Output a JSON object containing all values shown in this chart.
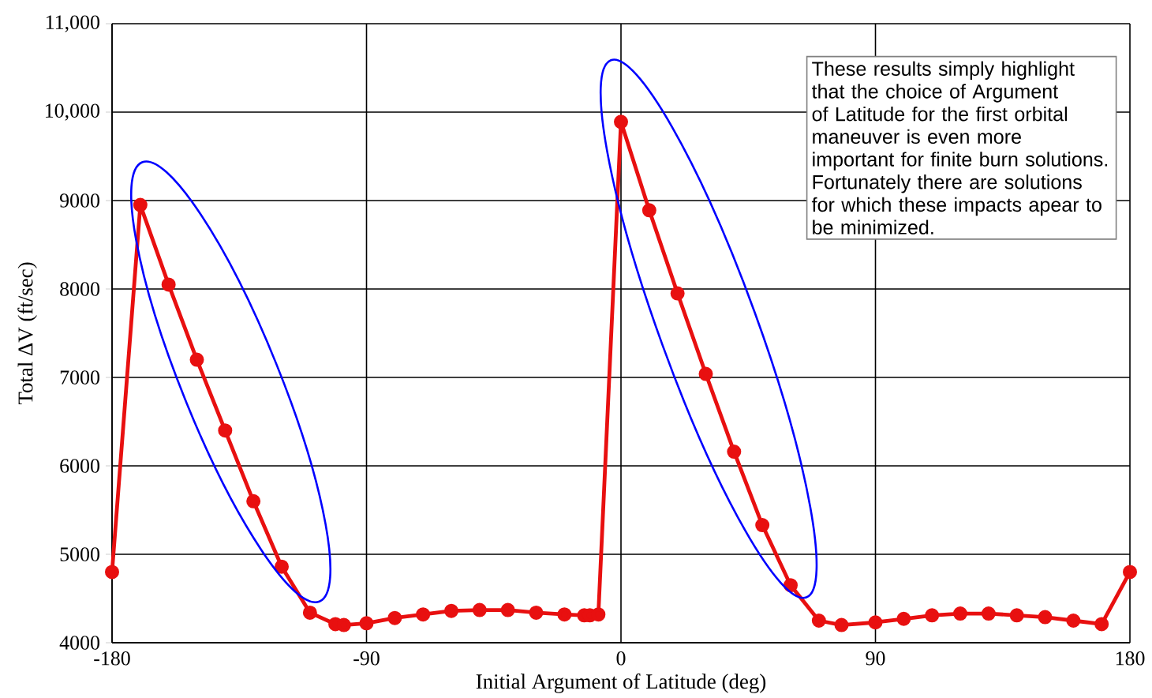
{
  "chart_data": {
    "type": "line",
    "xlabel": "Initial Argument of Latitude (deg)",
    "ylabel": "Total ΔV (ft/sec)",
    "x": [
      -180,
      -170,
      -160,
      -150,
      -140,
      -130,
      -120,
      -110,
      -101,
      -98,
      -90,
      -80,
      -70,
      -60,
      -50,
      -40,
      -30,
      -20,
      -13,
      -11,
      -8,
      0,
      10,
      20,
      30,
      40,
      50,
      60,
      70,
      78,
      90,
      100,
      110,
      120,
      130,
      140,
      150,
      160,
      170,
      180
    ],
    "series": [
      {
        "color": "#e81010",
        "values": [
          4800,
          8950,
          8050,
          7200,
          6400,
          5600,
          4860,
          4340,
          4210,
          4200,
          4220,
          4280,
          4320,
          4360,
          4370,
          4370,
          4340,
          4320,
          4310,
          4310,
          4320,
          9890,
          8890,
          7950,
          7040,
          6160,
          5330,
          4650,
          4250,
          4200,
          4230,
          4270,
          4310,
          4330,
          4330,
          4310,
          4290,
          4250,
          4210,
          4800
        ]
      }
    ],
    "xlim": [
      -180,
      180
    ],
    "xticks": [
      -180,
      -90,
      0,
      90,
      180
    ],
    "ylim": [
      4000,
      11000
    ],
    "yticks": [
      4000,
      5000,
      6000,
      7000,
      8000,
      9000,
      {
        "value": 10000,
        "label": "10,000"
      },
      {
        "value": 11000,
        "label": "11,000"
      }
    ],
    "grid": true,
    "marker": "circle",
    "line_style": "solid",
    "annotations": [
      "These results simply highlight that the choice of Argument of Latitude for the first orbital maneuver is even more important for finite burn solutions. Fortunately there are solutions for which these impacts apear to be minimized."
    ]
  }
}
